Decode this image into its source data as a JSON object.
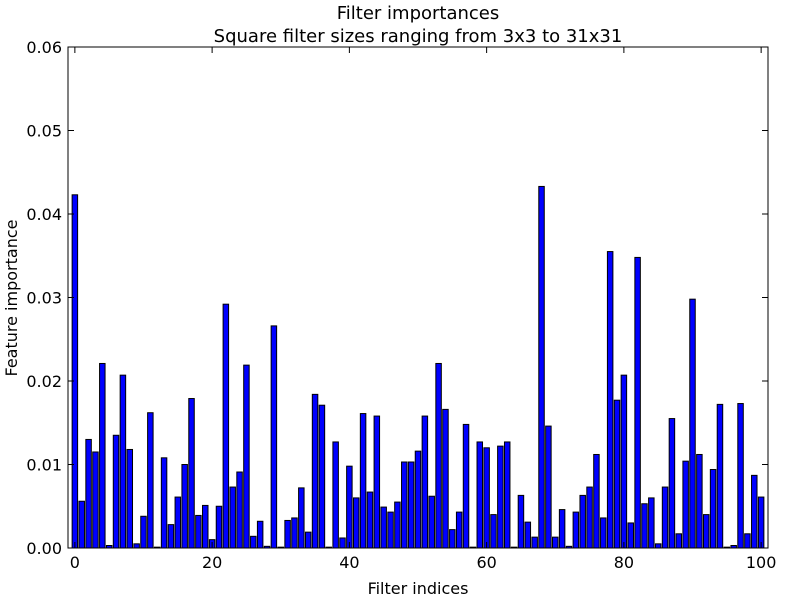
{
  "chart_data": {
    "type": "bar",
    "title": "Filter importances",
    "subtitle": "Square filter sizes ranging from 3x3 to 31x31",
    "xlabel": "Filter indices",
    "ylabel": "Feature importance",
    "xlim": [
      -1,
      101
    ],
    "ylim": [
      0,
      0.06
    ],
    "x_ticks": [
      0,
      20,
      40,
      60,
      80,
      100
    ],
    "y_ticks": [
      0.0,
      0.01,
      0.02,
      0.03,
      0.04,
      0.05,
      0.06
    ],
    "y_tick_labels": [
      "0.00",
      "0.01",
      "0.02",
      "0.03",
      "0.04",
      "0.05",
      "0.06"
    ],
    "bar_color": "#0000ff",
    "edge_color": "#000000",
    "grid": false,
    "values": [
      0.0423,
      0.0056,
      0.013,
      0.0115,
      0.0221,
      0.0003,
      0.0135,
      0.0207,
      0.0118,
      0.0005,
      0.0038,
      0.0162,
      0.0001,
      0.0108,
      0.0028,
      0.0061,
      0.01,
      0.0179,
      0.0039,
      0.0051,
      0.001,
      0.005,
      0.0292,
      0.0073,
      0.0091,
      0.0219,
      0.0014,
      0.0032,
      0.0002,
      0.0266,
      0.0001,
      0.0033,
      0.0036,
      0.0072,
      0.0019,
      0.0184,
      0.0171,
      0.0001,
      0.0127,
      0.0012,
      0.0098,
      0.006,
      0.0161,
      0.0067,
      0.0158,
      0.0049,
      0.0043,
      0.0055,
      0.0103,
      0.0103,
      0.0116,
      0.0158,
      0.0062,
      0.0221,
      0.0166,
      0.0022,
      0.0043,
      0.0148,
      0.0001,
      0.0127,
      0.012,
      0.004,
      0.0122,
      0.0127,
      0.0001,
      0.0063,
      0.0031,
      0.0013,
      0.0433,
      0.0146,
      0.0013,
      0.0046,
      0.0002,
      0.0043,
      0.0063,
      0.0073,
      0.0112,
      0.0036,
      0.0355,
      0.0177,
      0.0207,
      0.003,
      0.0348,
      0.0053,
      0.006,
      0.0005,
      0.0073,
      0.0155,
      0.0017,
      0.0104,
      0.0298,
      0.0112,
      0.004,
      0.0094,
      0.0172,
      0.0001,
      0.0003,
      0.0173,
      0.0017,
      0.0087,
      0.0061
    ]
  }
}
